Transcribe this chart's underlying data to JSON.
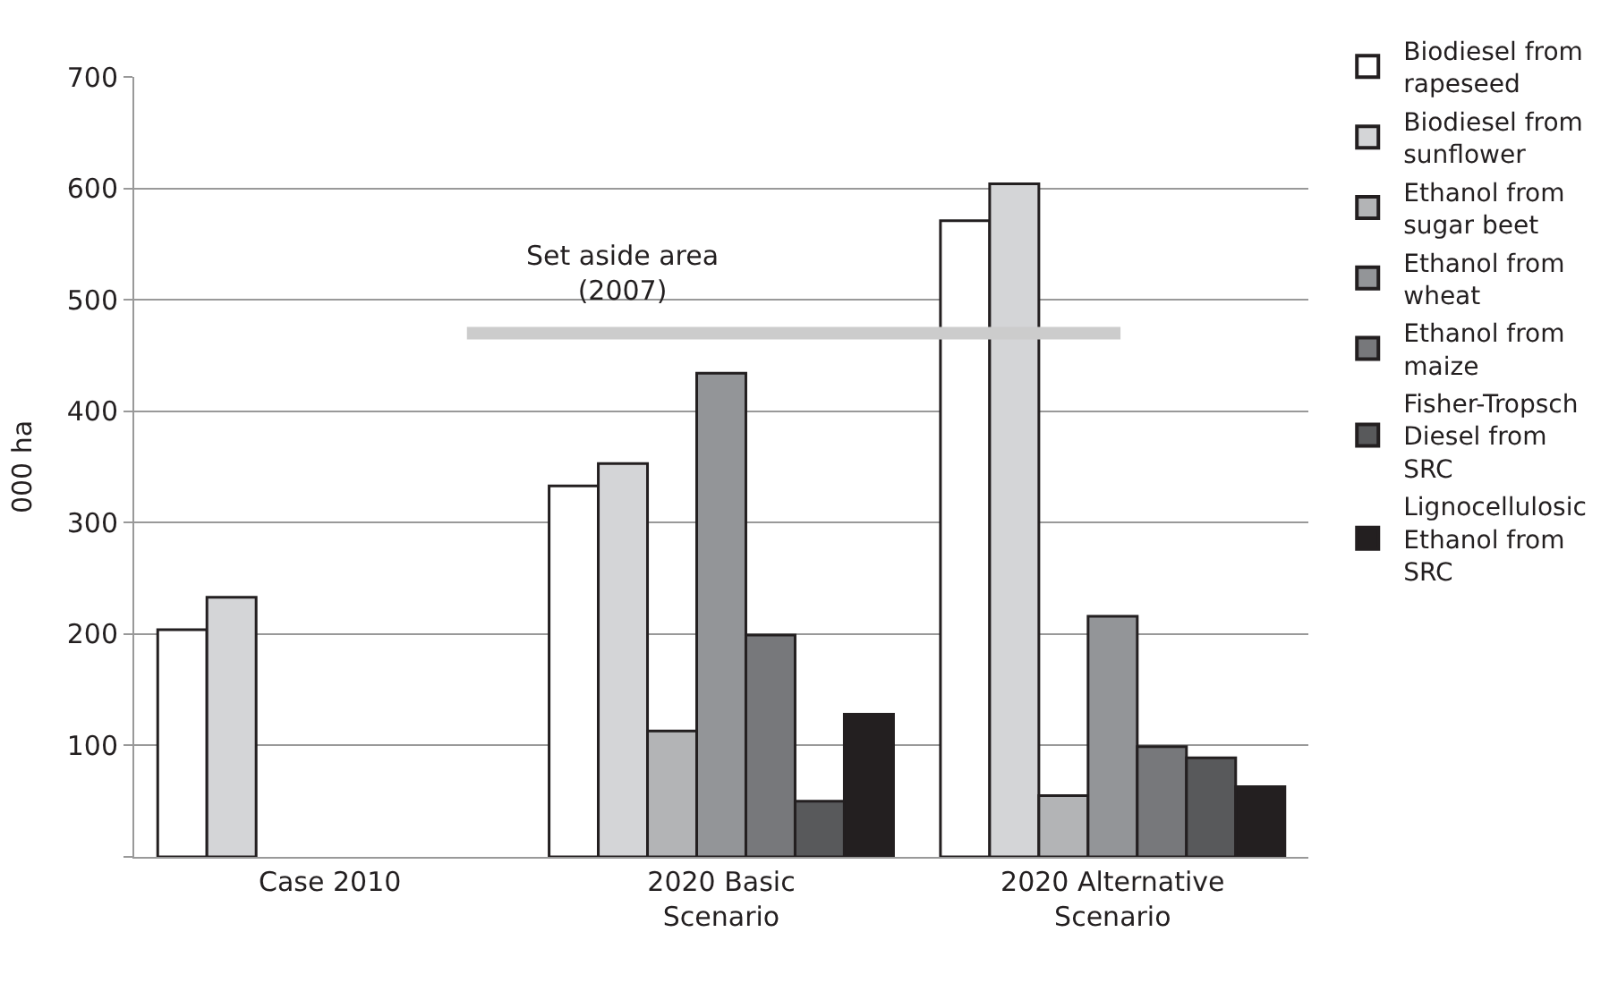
{
  "chart_data": {
    "type": "bar",
    "ylabel": "000 ha",
    "categories": [
      "Case 2010",
      "2020 Basic Scenario",
      "2020 Alternative Scenario"
    ],
    "series": [
      {
        "name": "Biodiesel from rapeseed",
        "color": "#ffffff",
        "values": [
          204,
          333,
          571
        ]
      },
      {
        "name": "Biodiesel from sunflower",
        "color": "#d4d5d7",
        "values": [
          233,
          353,
          604
        ]
      },
      {
        "name": "Ethanol from sugar beet",
        "color": "#b3b4b6",
        "values": [
          null,
          113,
          55
        ]
      },
      {
        "name": "Ethanol from wheat",
        "color": "#939598",
        "values": [
          null,
          434,
          216
        ]
      },
      {
        "name": "Ethanol from maize",
        "color": "#77787b",
        "values": [
          null,
          199,
          99
        ]
      },
      {
        "name": "Fisher-Tropsch Diesel from SRC",
        "color": "#58595b",
        "values": [
          null,
          50,
          89
        ]
      },
      {
        "name": "Lignocellulosic Ethanol from SRC",
        "color": "#231f20",
        "values": [
          null,
          128,
          63
        ]
      }
    ],
    "ylim": [
      0,
      700
    ],
    "yticks": [
      {
        "value": 0,
        "label": null
      },
      100,
      200,
      300,
      400,
      500,
      600,
      700
    ],
    "ref_lines": [
      {
        "axis": "y",
        "value": 470,
        "label": "Set aside area (2007)",
        "color": "#cccccc"
      }
    ],
    "grid": "y",
    "legend": "right"
  }
}
